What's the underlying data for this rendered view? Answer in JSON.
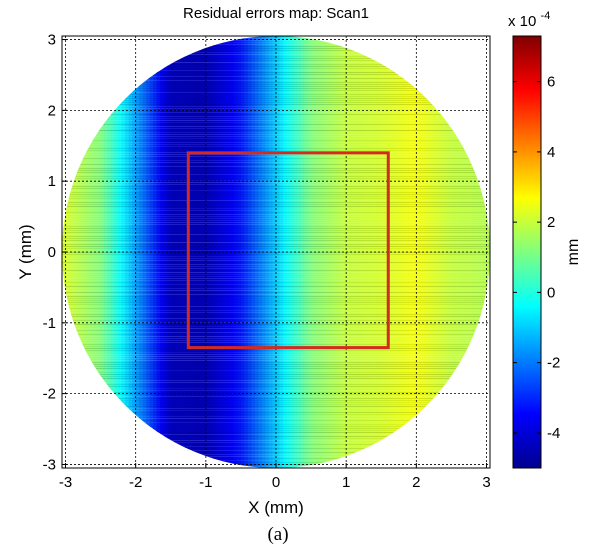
{
  "chart_data": {
    "type": "heatmap",
    "title": "Residual errors map: Scan1",
    "xlabel": "X (mm)",
    "ylabel": "Y (mm)",
    "xlim": [
      -3.05,
      3.05
    ],
    "ylim": [
      -3.05,
      3.05
    ],
    "xticks": [
      -3,
      -2,
      -1,
      0,
      1,
      2,
      3
    ],
    "yticks": [
      -3,
      -2,
      -1,
      0,
      1,
      2,
      3
    ],
    "grid": true,
    "colorbar": {
      "label": "mm",
      "multiplier": "x 10",
      "exponent": "-4",
      "range": [
        -5,
        7.3
      ],
      "ticks": [
        -4,
        -2,
        0,
        2,
        4,
        6
      ],
      "colormap": "jet"
    },
    "data_region": {
      "shape": "circle",
      "center": [
        0,
        0
      ],
      "radius": 3.05
    },
    "field_profile_x": [
      -3,
      -2.5,
      -2,
      -1.5,
      -1,
      -0.5,
      0,
      0.5,
      1,
      1.5,
      2,
      2.5,
      3
    ],
    "field_profile_values": [
      2.2,
      1.2,
      -1.5,
      -4.2,
      -4.3,
      -3.2,
      -1.0,
      1.2,
      2.0,
      2.2,
      2.6,
      2.0,
      1.8
    ],
    "highlight_box": {
      "x": [
        -1.25,
        1.6
      ],
      "y": [
        -1.35,
        1.4
      ],
      "color": "#d42a20"
    }
  },
  "caption": "(a)"
}
